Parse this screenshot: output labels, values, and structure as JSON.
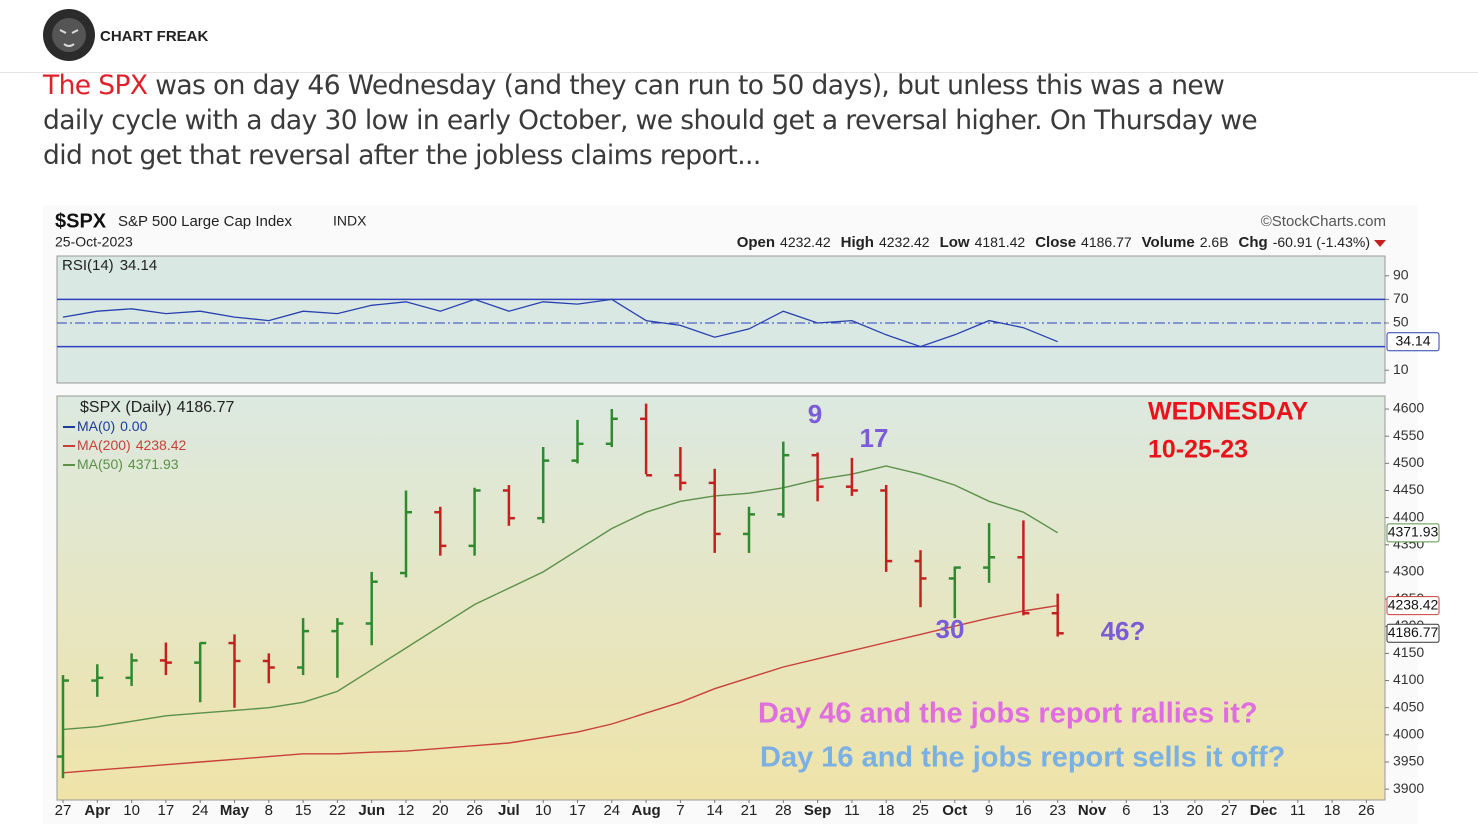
{
  "header": {
    "brand": "CHART FREAK",
    "intro_lead": "The SPX",
    "intro_lines": [
      " was on day 46 Wednesday (and they can run to 50 days), but unless this was a new",
      "daily cycle with a day 30 low in early October, we should get a reversal higher. On Thursday we",
      "did not get that reversal after the jobless claims report..."
    ]
  },
  "chart_data": {
    "type": "ohlc",
    "title": "$SPX",
    "subtitle": "S&P 500 Large Cap Index",
    "exchange": "INDX",
    "date": "25-Oct-2023",
    "source": "©StockCharts.com",
    "quote": [
      {
        "label": "Open",
        "value": "4232.42"
      },
      {
        "label": "High",
        "value": "4232.42"
      },
      {
        "label": "Low",
        "value": "4181.42"
      },
      {
        "label": "Close",
        "value": "4186.77"
      },
      {
        "label": "Volume",
        "value": "2.6B"
      },
      {
        "label": "Chg",
        "value": "-60.91 (-1.43%)"
      }
    ],
    "categories": [
      "27",
      "Apr",
      "10",
      "17",
      "24",
      "May",
      "8",
      "15",
      "22",
      "Jun",
      "12",
      "20",
      "26",
      "Jul",
      "10",
      "17",
      "24",
      "Aug",
      "7",
      "14",
      "21",
      "28",
      "Sep",
      "11",
      "18",
      "25",
      "Oct",
      "9",
      "16",
      "23",
      "Nov",
      "6",
      "13",
      "20",
      "27",
      "Dec",
      "11",
      "18",
      "26"
    ],
    "price": {
      "name": "$SPX (Daily)",
      "last_label": "4186.77",
      "up_color": "#2f8a2f",
      "down_color": "#c42020",
      "open": [
        3960,
        4100,
        4105,
        4137,
        4133,
        4169,
        4136,
        4124,
        4191,
        4205,
        4298,
        4410,
        4348,
        4450,
        4399,
        4505,
        4536,
        4582,
        4478,
        4464,
        4370,
        4406,
        4515,
        4457,
        4450,
        4320,
        4288,
        4308,
        4327,
        4224,
        null,
        null,
        null,
        null,
        null,
        null,
        null,
        null,
        null
      ],
      "high": [
        4110,
        4130,
        4150,
        4170,
        4170,
        4185,
        4150,
        4215,
        4215,
        4300,
        4450,
        4420,
        4455,
        4460,
        4530,
        4580,
        4600,
        4610,
        4530,
        4490,
        4420,
        4540,
        4520,
        4510,
        4460,
        4340,
        4310,
        4390,
        4395,
        4260,
        null,
        null,
        null,
        null,
        null,
        null,
        null,
        null,
        null
      ],
      "low": [
        3920,
        4070,
        4090,
        4110,
        4060,
        4050,
        4095,
        4110,
        4105,
        4165,
        4290,
        4330,
        4330,
        4385,
        4390,
        4500,
        4530,
        4480,
        4450,
        4335,
        4335,
        4400,
        4430,
        4440,
        4300,
        4235,
        4215,
        4280,
        4220,
        4181,
        null,
        null,
        null,
        null,
        null,
        null,
        null,
        null,
        null
      ],
      "close": [
        4100,
        4105,
        4137,
        4133,
        4169,
        4136,
        4124,
        4191,
        4205,
        4282,
        4410,
        4348,
        4450,
        4399,
        4505,
        4536,
        4582,
        4478,
        4464,
        4370,
        4406,
        4515,
        4457,
        4450,
        4320,
        4288,
        4308,
        4327,
        4224,
        4187,
        null,
        null,
        null,
        null,
        null,
        null,
        null,
        null,
        null
      ]
    },
    "legend_extra": {
      "name": "MA(0)",
      "label": "0.00",
      "color": "#1a3c9c"
    },
    "series": [
      {
        "name": "MA(200)",
        "last_label": "4238.42",
        "color": "#c8403a",
        "values": [
          3930,
          3935,
          3940,
          3945,
          3950,
          3955,
          3960,
          3965,
          3965,
          3968,
          3970,
          3975,
          3980,
          3985,
          3995,
          4005,
          4020,
          4040,
          4060,
          4085,
          4105,
          4125,
          4140,
          4155,
          4170,
          4185,
          4200,
          4215,
          4228,
          4238,
          null,
          null,
          null,
          null,
          null,
          null,
          null,
          null,
          null
        ]
      },
      {
        "name": "MA(50)",
        "last_label": "4371.93",
        "color": "#5a9048",
        "values": [
          4010,
          4015,
          4025,
          4035,
          4040,
          4045,
          4050,
          4060,
          4080,
          4120,
          4160,
          4200,
          4240,
          4270,
          4300,
          4340,
          4380,
          4410,
          4430,
          4440,
          4445,
          4455,
          4470,
          4480,
          4495,
          4480,
          4460,
          4430,
          4410,
          4372,
          null,
          null,
          null,
          null,
          null,
          null,
          null,
          null,
          null
        ]
      }
    ],
    "ylim": [
      3880,
      4624
    ],
    "yticks": [
      3900,
      3950,
      4000,
      4050,
      4100,
      4150,
      4200,
      4250,
      4300,
      4350,
      4400,
      4450,
      4500,
      4550,
      4600
    ],
    "rsi": {
      "name": "RSI(14)",
      "last_label": "34.14",
      "color": "#2840b0",
      "values": [
        55,
        60,
        62,
        58,
        60,
        55,
        52,
        60,
        58,
        65,
        68,
        60,
        70,
        60,
        68,
        66,
        70,
        52,
        48,
        38,
        45,
        60,
        50,
        52,
        40,
        30,
        40,
        52,
        46,
        34.14,
        null,
        null,
        null,
        null,
        null,
        null,
        null,
        null,
        null
      ],
      "ylim": [
        0,
        100
      ],
      "yticks": [
        10,
        50,
        70,
        90
      ],
      "bands": [
        30,
        70
      ],
      "midline": 50
    },
    "annotations": [
      {
        "text": "9",
        "color": "#7b5cd6"
      },
      {
        "text": "17",
        "color": "#7b5cd6"
      },
      {
        "text": "30",
        "color": "#7b5cd6"
      },
      {
        "text": "46?",
        "color": "#7b5cd6"
      },
      {
        "text": "WEDNESDAY",
        "color": "#e8141c"
      },
      {
        "text": "10-25-23",
        "color": "#e8141c"
      },
      {
        "text": "Day 46 and the jobs report rallies it?",
        "color": "#df6ee0"
      },
      {
        "text": "Day 16 and the jobs report sells it off?",
        "color": "#7ab0e2"
      }
    ]
  }
}
